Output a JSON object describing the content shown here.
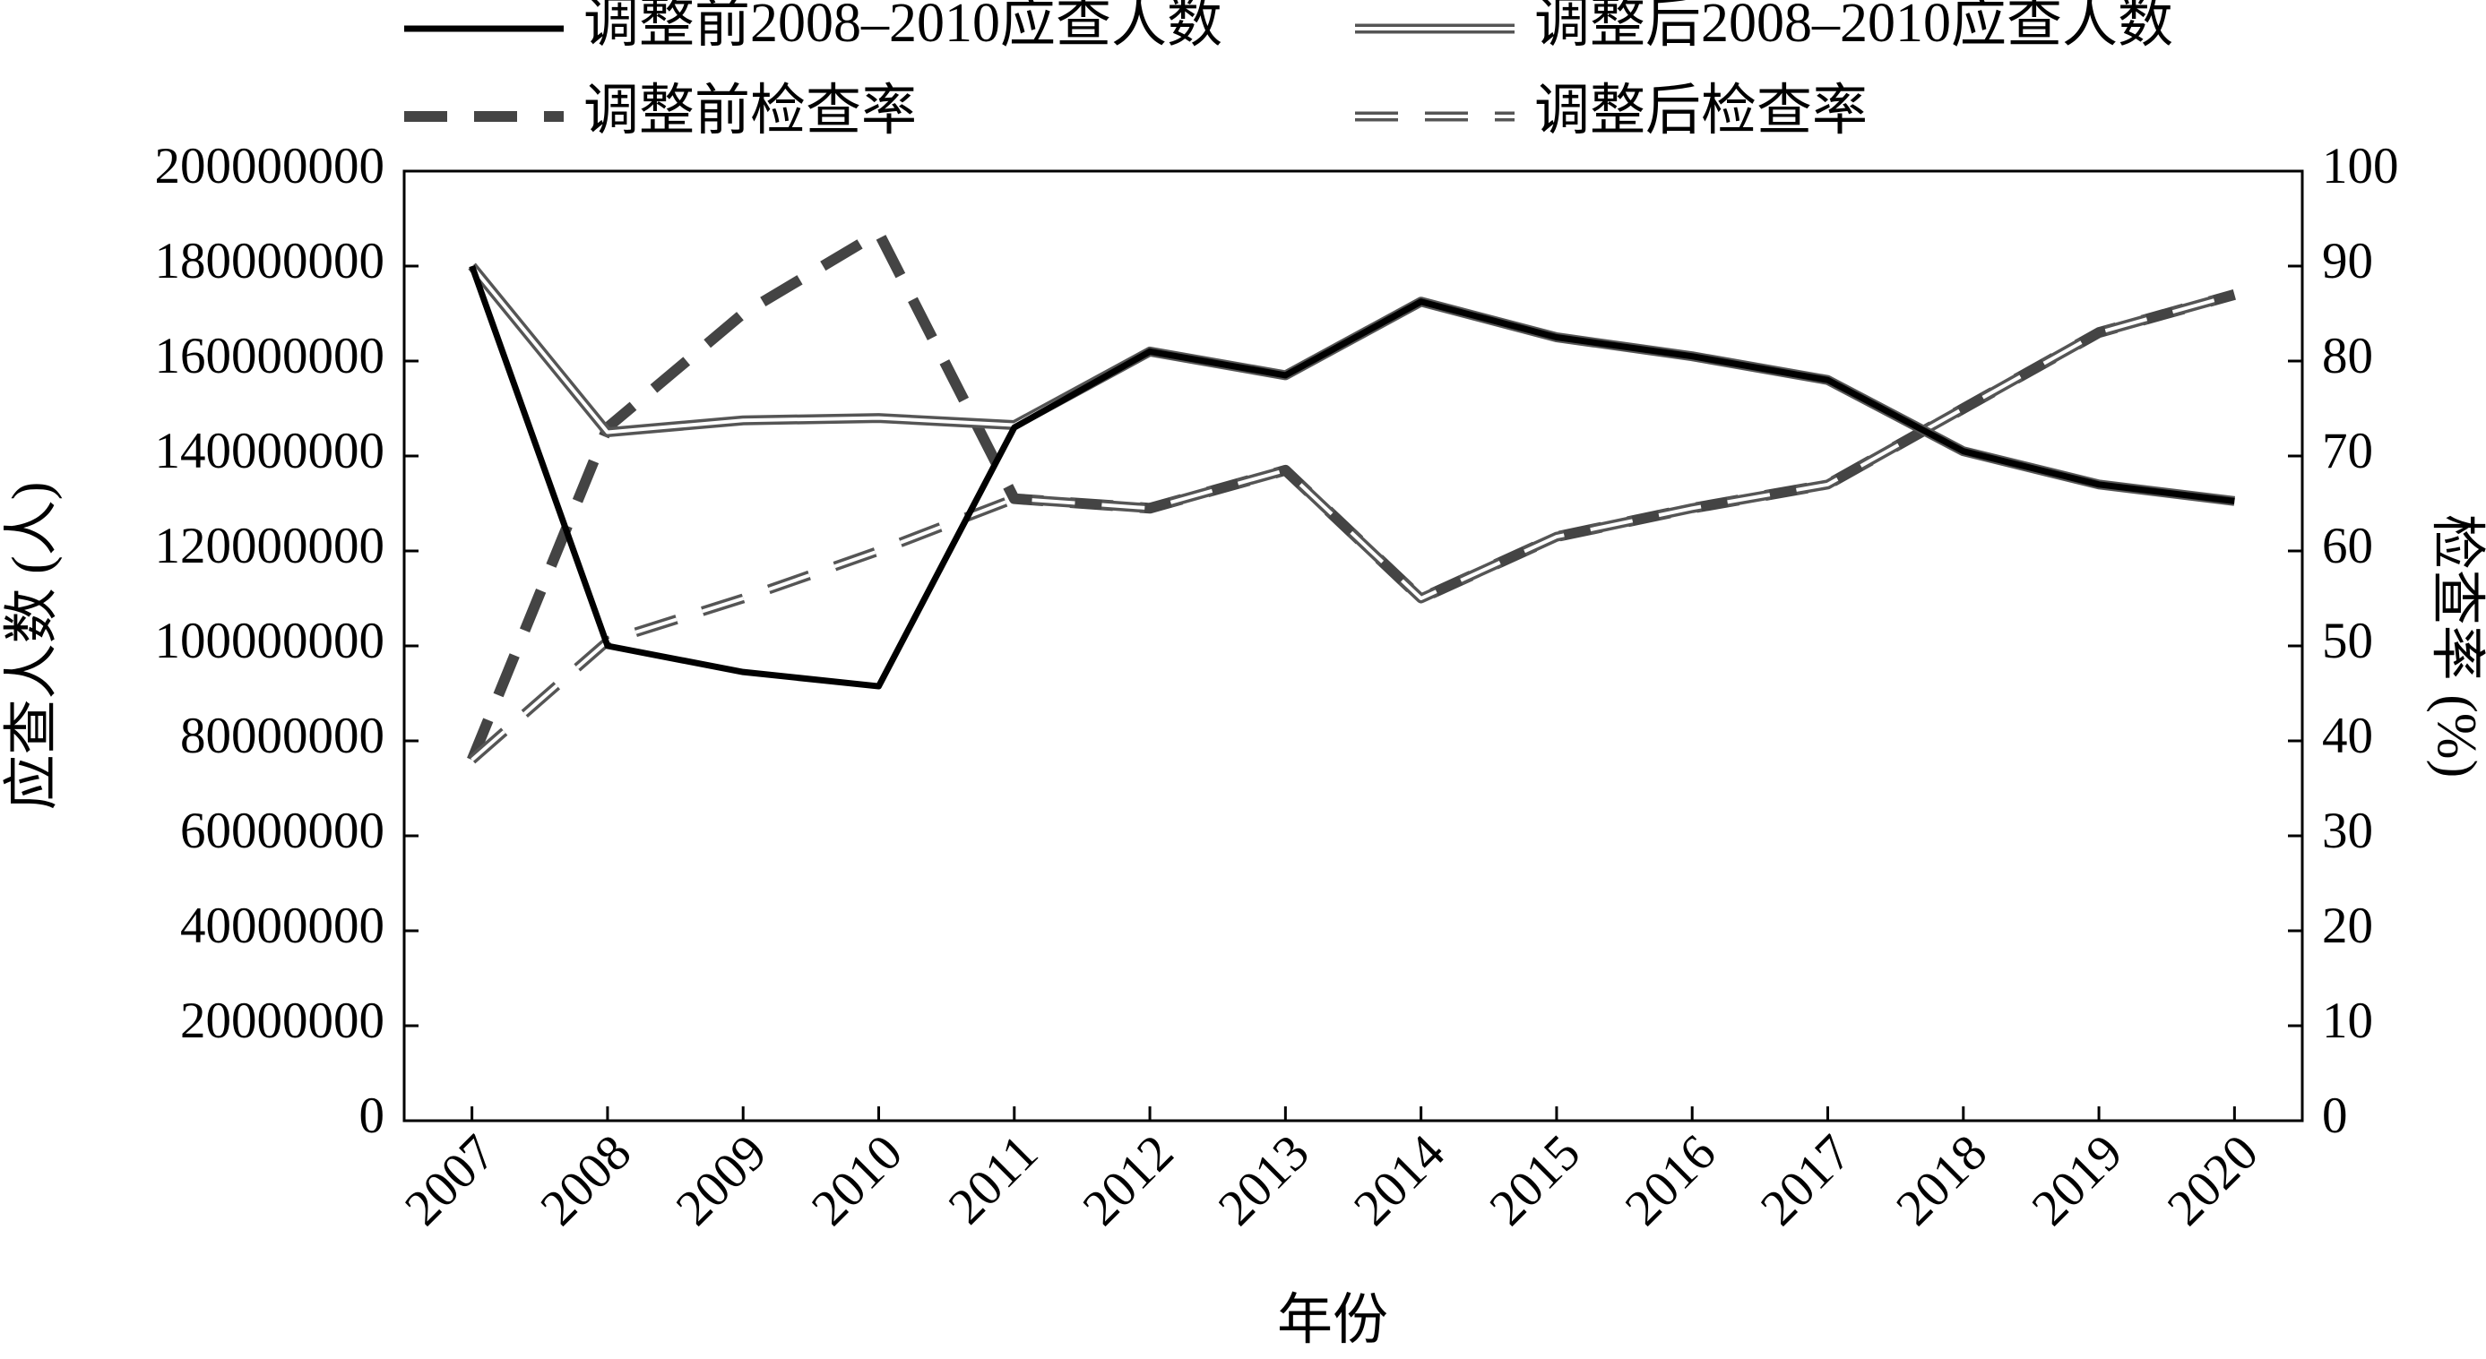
{
  "chart_data": {
    "type": "line",
    "x_label": "年份",
    "y_label": "应查人数 (人)",
    "y2_label": "检查率 (%)",
    "categories": [
      "2007",
      "2008",
      "2009",
      "2010",
      "2011",
      "2012",
      "2013",
      "2014",
      "2015",
      "2016",
      "2017",
      "2018",
      "2019",
      "2020"
    ],
    "series": [
      {
        "name": "调整前2008–2010应查人数",
        "color": "#000000",
        "dashed": false,
        "double": false,
        "values": [
          180000000,
          100000000,
          94500000,
          91500000,
          146000000,
          162000000,
          157000000,
          172500000,
          165000000,
          161000000,
          156000000,
          141000000,
          134000000,
          130500000
        ]
      },
      {
        "name": "调整后2008–2010应查人数",
        "color": "#555555",
        "dashed": false,
        "double": true,
        "values": [
          180000000,
          145000000,
          147500000,
          148000000,
          146500000,
          162000000,
          157000000,
          172500000,
          165000000,
          161000000,
          156000000,
          141000000,
          134000000,
          130500000
        ]
      },
      {
        "name": "调整前检查率",
        "color": "#444444",
        "dashed": true,
        "double": false,
        "axis": "y2",
        "values": [
          38,
          73,
          85,
          93.5,
          65.5,
          64.5,
          68.5,
          55,
          61.5,
          64.5,
          67,
          75,
          83,
          87
        ]
      },
      {
        "name": "调整后检查率",
        "color": "#555555",
        "dashed": true,
        "double": true,
        "axis": "y2",
        "values": [
          38,
          50.5,
          55,
          60,
          65.5,
          64.5,
          68.5,
          55,
          61.5,
          64.5,
          67,
          75,
          83,
          87
        ]
      }
    ],
    "ylim": [
      0,
      200000000
    ],
    "yticks": [
      0,
      20000000,
      40000000,
      60000000,
      80000000,
      100000000,
      120000000,
      140000000,
      160000000,
      180000000,
      200000000
    ],
    "y2lim": [
      0,
      100
    ],
    "y2ticks": [
      0,
      10,
      20,
      30,
      40,
      50,
      60,
      70,
      80,
      90,
      100
    ],
    "grid": false
  }
}
